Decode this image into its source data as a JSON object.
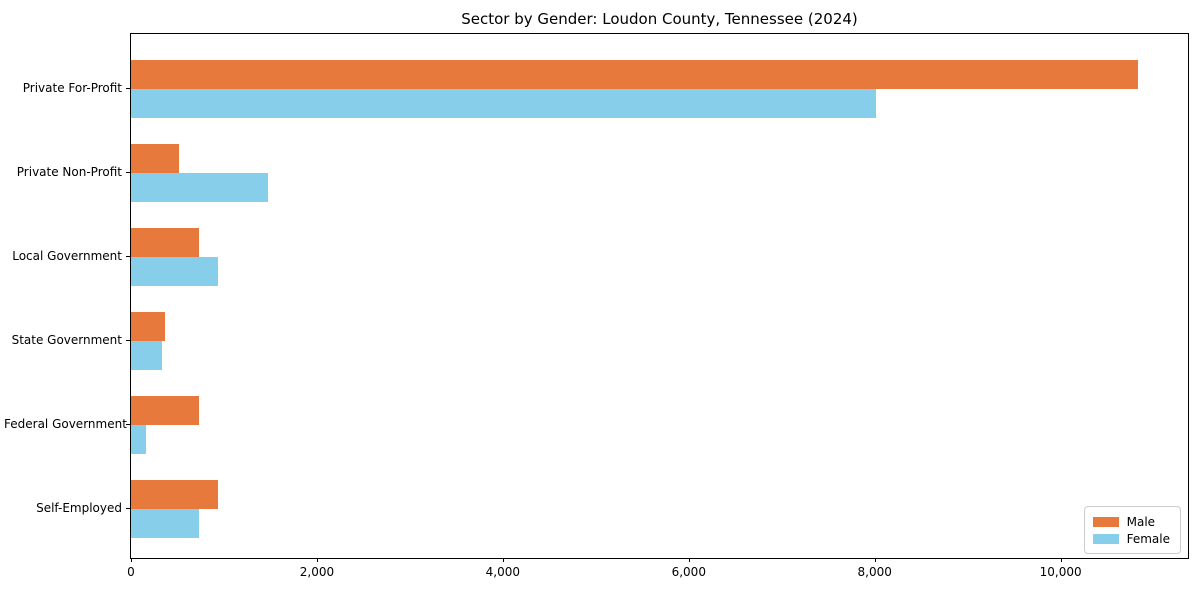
{
  "title": "Sector by Gender: Loudon County, Tennessee (2024)",
  "chart_data": {
    "type": "bar",
    "orientation": "horizontal",
    "title": "Sector by Gender: Loudon County, Tennessee (2024)",
    "xlabel": "",
    "ylabel": "",
    "categories": [
      "Private For-Profit",
      "Private Non-Profit",
      "Local Government",
      "State Government",
      "Federal Government",
      "Self-Employed"
    ],
    "series": [
      {
        "name": "Male",
        "color": "#e8793d",
        "values": [
          10830,
          520,
          730,
          370,
          730,
          930
        ]
      },
      {
        "name": "Female",
        "color": "#87ceeb",
        "values": [
          8010,
          1470,
          940,
          330,
          165,
          730
        ]
      }
    ],
    "xlim": [
      0,
      11370
    ],
    "xticks": {
      "values": [
        0,
        2000,
        4000,
        6000,
        8000,
        10000
      ],
      "labels": [
        "0",
        "2,000",
        "4,000",
        "6,000",
        "8,000",
        "10,000"
      ]
    },
    "grid": false,
    "legend_position": "lower right",
    "colors": {
      "male": "#e8793d",
      "female": "#87ceeb",
      "spine": "#000000",
      "legend_border": "#cccccc"
    }
  }
}
